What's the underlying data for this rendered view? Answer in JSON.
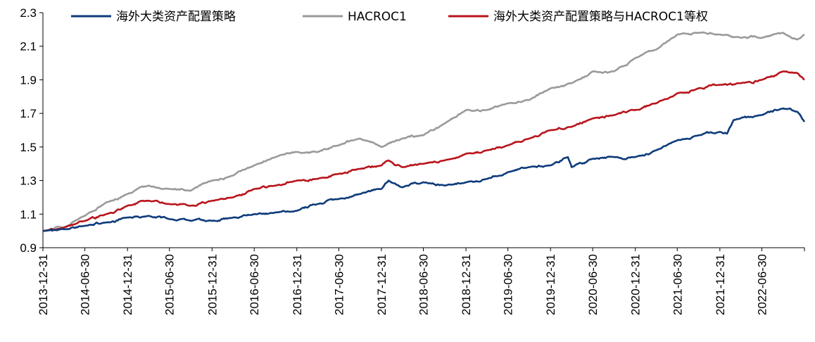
{
  "chart_data": {
    "type": "line",
    "title": "",
    "xlabel": "",
    "ylabel": "",
    "ylim": [
      0.9,
      2.3
    ],
    "xlim": [
      "2013-12-31",
      "2022-12-31"
    ],
    "grid": false,
    "legend_position": "top",
    "y_ticks": [
      "0.9",
      "1.1",
      "1.3",
      "1.5",
      "1.7",
      "1.9",
      "2.1",
      "2.3"
    ],
    "x_ticks": [
      "2013-12-31",
      "2014-06-30",
      "2014-12-31",
      "2015-06-30",
      "2015-12-31",
      "2016-06-30",
      "2016-12-31",
      "2017-06-30",
      "2017-12-31",
      "2018-06-30",
      "2018-12-31",
      "2019-06-30",
      "2019-12-31",
      "2020-06-30",
      "2020-12-31",
      "2021-06-30",
      "2021-12-31",
      "2022-06-30"
    ],
    "series": [
      {
        "name": "海外大类资产配置策略",
        "color": "#0d3b7a",
        "points": [
          [
            "2013-12-31",
            1.0
          ],
          [
            "2014-03-31",
            1.01
          ],
          [
            "2014-06-30",
            1.03
          ],
          [
            "2014-09-30",
            1.05
          ],
          [
            "2014-12-31",
            1.08
          ],
          [
            "2015-03-31",
            1.09
          ],
          [
            "2015-06-30",
            1.07
          ],
          [
            "2015-09-30",
            1.06
          ],
          [
            "2015-12-31",
            1.06
          ],
          [
            "2016-03-31",
            1.08
          ],
          [
            "2016-06-30",
            1.1
          ],
          [
            "2016-09-30",
            1.11
          ],
          [
            "2016-12-31",
            1.12
          ],
          [
            "2017-03-31",
            1.16
          ],
          [
            "2017-06-30",
            1.19
          ],
          [
            "2017-09-30",
            1.22
          ],
          [
            "2017-12-31",
            1.25
          ],
          [
            "2018-01-31",
            1.3
          ],
          [
            "2018-03-31",
            1.26
          ],
          [
            "2018-06-30",
            1.29
          ],
          [
            "2018-09-30",
            1.27
          ],
          [
            "2018-12-31",
            1.29
          ],
          [
            "2019-03-31",
            1.31
          ],
          [
            "2019-06-30",
            1.35
          ],
          [
            "2019-09-30",
            1.38
          ],
          [
            "2019-12-31",
            1.39
          ],
          [
            "2020-03-15",
            1.44
          ],
          [
            "2020-03-31",
            1.38
          ],
          [
            "2020-06-30",
            1.43
          ],
          [
            "2020-09-30",
            1.44
          ],
          [
            "2020-12-31",
            1.44
          ],
          [
            "2021-03-31",
            1.48
          ],
          [
            "2021-06-30",
            1.54
          ],
          [
            "2021-09-30",
            1.57
          ],
          [
            "2021-12-31",
            1.59
          ],
          [
            "2022-01-31",
            1.58
          ],
          [
            "2022-02-28",
            1.66
          ],
          [
            "2022-06-30",
            1.69
          ],
          [
            "2022-09-30",
            1.73
          ],
          [
            "2022-11-30",
            1.71
          ],
          [
            "2022-12-31",
            1.65
          ]
        ]
      },
      {
        "name": "HACROC1",
        "color": "#9a9a9a",
        "points": [
          [
            "2013-12-31",
            1.0
          ],
          [
            "2014-03-31",
            1.02
          ],
          [
            "2014-06-30",
            1.09
          ],
          [
            "2014-09-30",
            1.17
          ],
          [
            "2014-12-31",
            1.22
          ],
          [
            "2015-03-31",
            1.27
          ],
          [
            "2015-06-30",
            1.25
          ],
          [
            "2015-09-30",
            1.24
          ],
          [
            "2015-12-31",
            1.3
          ],
          [
            "2016-03-31",
            1.33
          ],
          [
            "2016-06-30",
            1.39
          ],
          [
            "2016-09-30",
            1.44
          ],
          [
            "2016-12-31",
            1.47
          ],
          [
            "2017-03-31",
            1.47
          ],
          [
            "2017-06-30",
            1.51
          ],
          [
            "2017-09-30",
            1.55
          ],
          [
            "2017-12-31",
            1.5
          ],
          [
            "2018-03-31",
            1.55
          ],
          [
            "2018-06-30",
            1.57
          ],
          [
            "2018-09-30",
            1.64
          ],
          [
            "2018-12-31",
            1.72
          ],
          [
            "2019-03-31",
            1.72
          ],
          [
            "2019-06-30",
            1.76
          ],
          [
            "2019-09-30",
            1.78
          ],
          [
            "2019-12-31",
            1.85
          ],
          [
            "2020-03-31",
            1.88
          ],
          [
            "2020-06-30",
            1.95
          ],
          [
            "2020-09-30",
            1.95
          ],
          [
            "2020-12-31",
            2.03
          ],
          [
            "2021-03-31",
            2.08
          ],
          [
            "2021-06-30",
            2.17
          ],
          [
            "2021-09-30",
            2.18
          ],
          [
            "2021-12-31",
            2.17
          ],
          [
            "2022-03-31",
            2.15
          ],
          [
            "2022-06-30",
            2.15
          ],
          [
            "2022-09-30",
            2.18
          ],
          [
            "2022-11-30",
            2.14
          ],
          [
            "2022-12-31",
            2.17
          ]
        ]
      },
      {
        "name": "海外大类资产配置策略与HACROC1等权",
        "color": "#b8141b",
        "points": [
          [
            "2013-12-31",
            1.0
          ],
          [
            "2014-03-31",
            1.02
          ],
          [
            "2014-06-30",
            1.06
          ],
          [
            "2014-09-30",
            1.1
          ],
          [
            "2014-12-31",
            1.15
          ],
          [
            "2015-03-31",
            1.18
          ],
          [
            "2015-06-30",
            1.16
          ],
          [
            "2015-09-30",
            1.15
          ],
          [
            "2015-12-31",
            1.18
          ],
          [
            "2016-03-31",
            1.2
          ],
          [
            "2016-06-30",
            1.25
          ],
          [
            "2016-09-30",
            1.27
          ],
          [
            "2016-12-31",
            1.3
          ],
          [
            "2017-03-31",
            1.31
          ],
          [
            "2017-06-30",
            1.34
          ],
          [
            "2017-09-30",
            1.37
          ],
          [
            "2017-12-31",
            1.39
          ],
          [
            "2018-01-31",
            1.42
          ],
          [
            "2018-03-31",
            1.38
          ],
          [
            "2018-06-30",
            1.4
          ],
          [
            "2018-09-30",
            1.42
          ],
          [
            "2018-12-31",
            1.46
          ],
          [
            "2019-03-31",
            1.48
          ],
          [
            "2019-06-30",
            1.51
          ],
          [
            "2019-09-30",
            1.55
          ],
          [
            "2019-12-31",
            1.6
          ],
          [
            "2020-03-31",
            1.62
          ],
          [
            "2020-06-30",
            1.67
          ],
          [
            "2020-09-30",
            1.69
          ],
          [
            "2020-12-31",
            1.72
          ],
          [
            "2021-03-31",
            1.76
          ],
          [
            "2021-06-30",
            1.82
          ],
          [
            "2021-09-30",
            1.85
          ],
          [
            "2021-12-31",
            1.87
          ],
          [
            "2022-03-31",
            1.88
          ],
          [
            "2022-06-30",
            1.9
          ],
          [
            "2022-09-30",
            1.95
          ],
          [
            "2022-11-30",
            1.94
          ],
          [
            "2022-12-31",
            1.9
          ]
        ]
      }
    ]
  }
}
